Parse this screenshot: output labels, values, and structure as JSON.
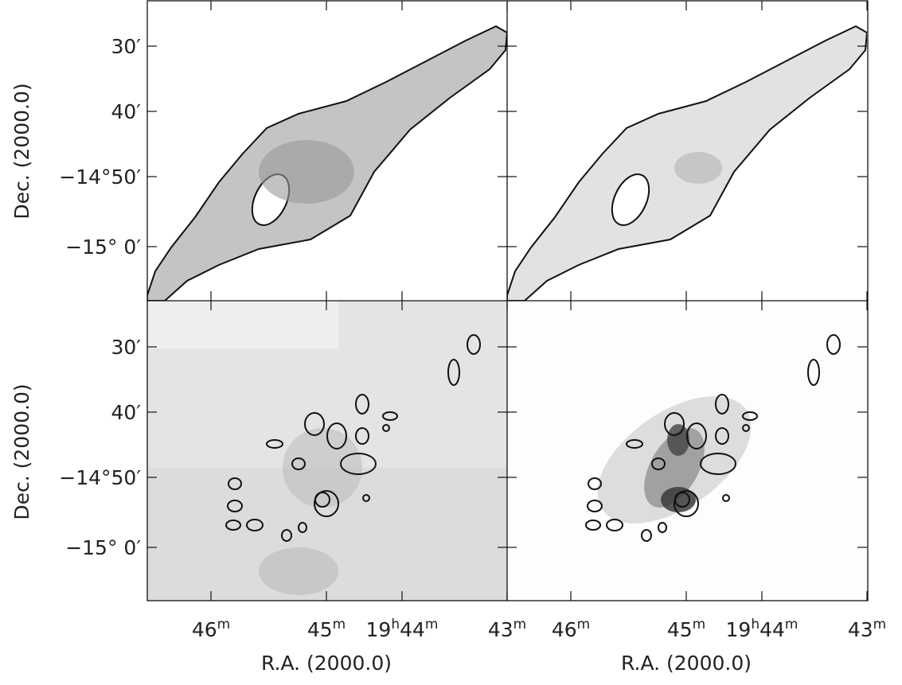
{
  "y_axis": {
    "label": "Dec. (2000.0)",
    "ticks": [
      "30′",
      "40′",
      "−14°50′",
      "−15° 0′"
    ]
  },
  "x_axis": {
    "label": "R.A. (2000.0)",
    "ticks": [
      [
        "46",
        "m"
      ],
      [
        "45",
        "m"
      ],
      [
        "19",
        "h",
        "44",
        "m"
      ],
      [
        "43",
        "m"
      ]
    ]
  }
}
